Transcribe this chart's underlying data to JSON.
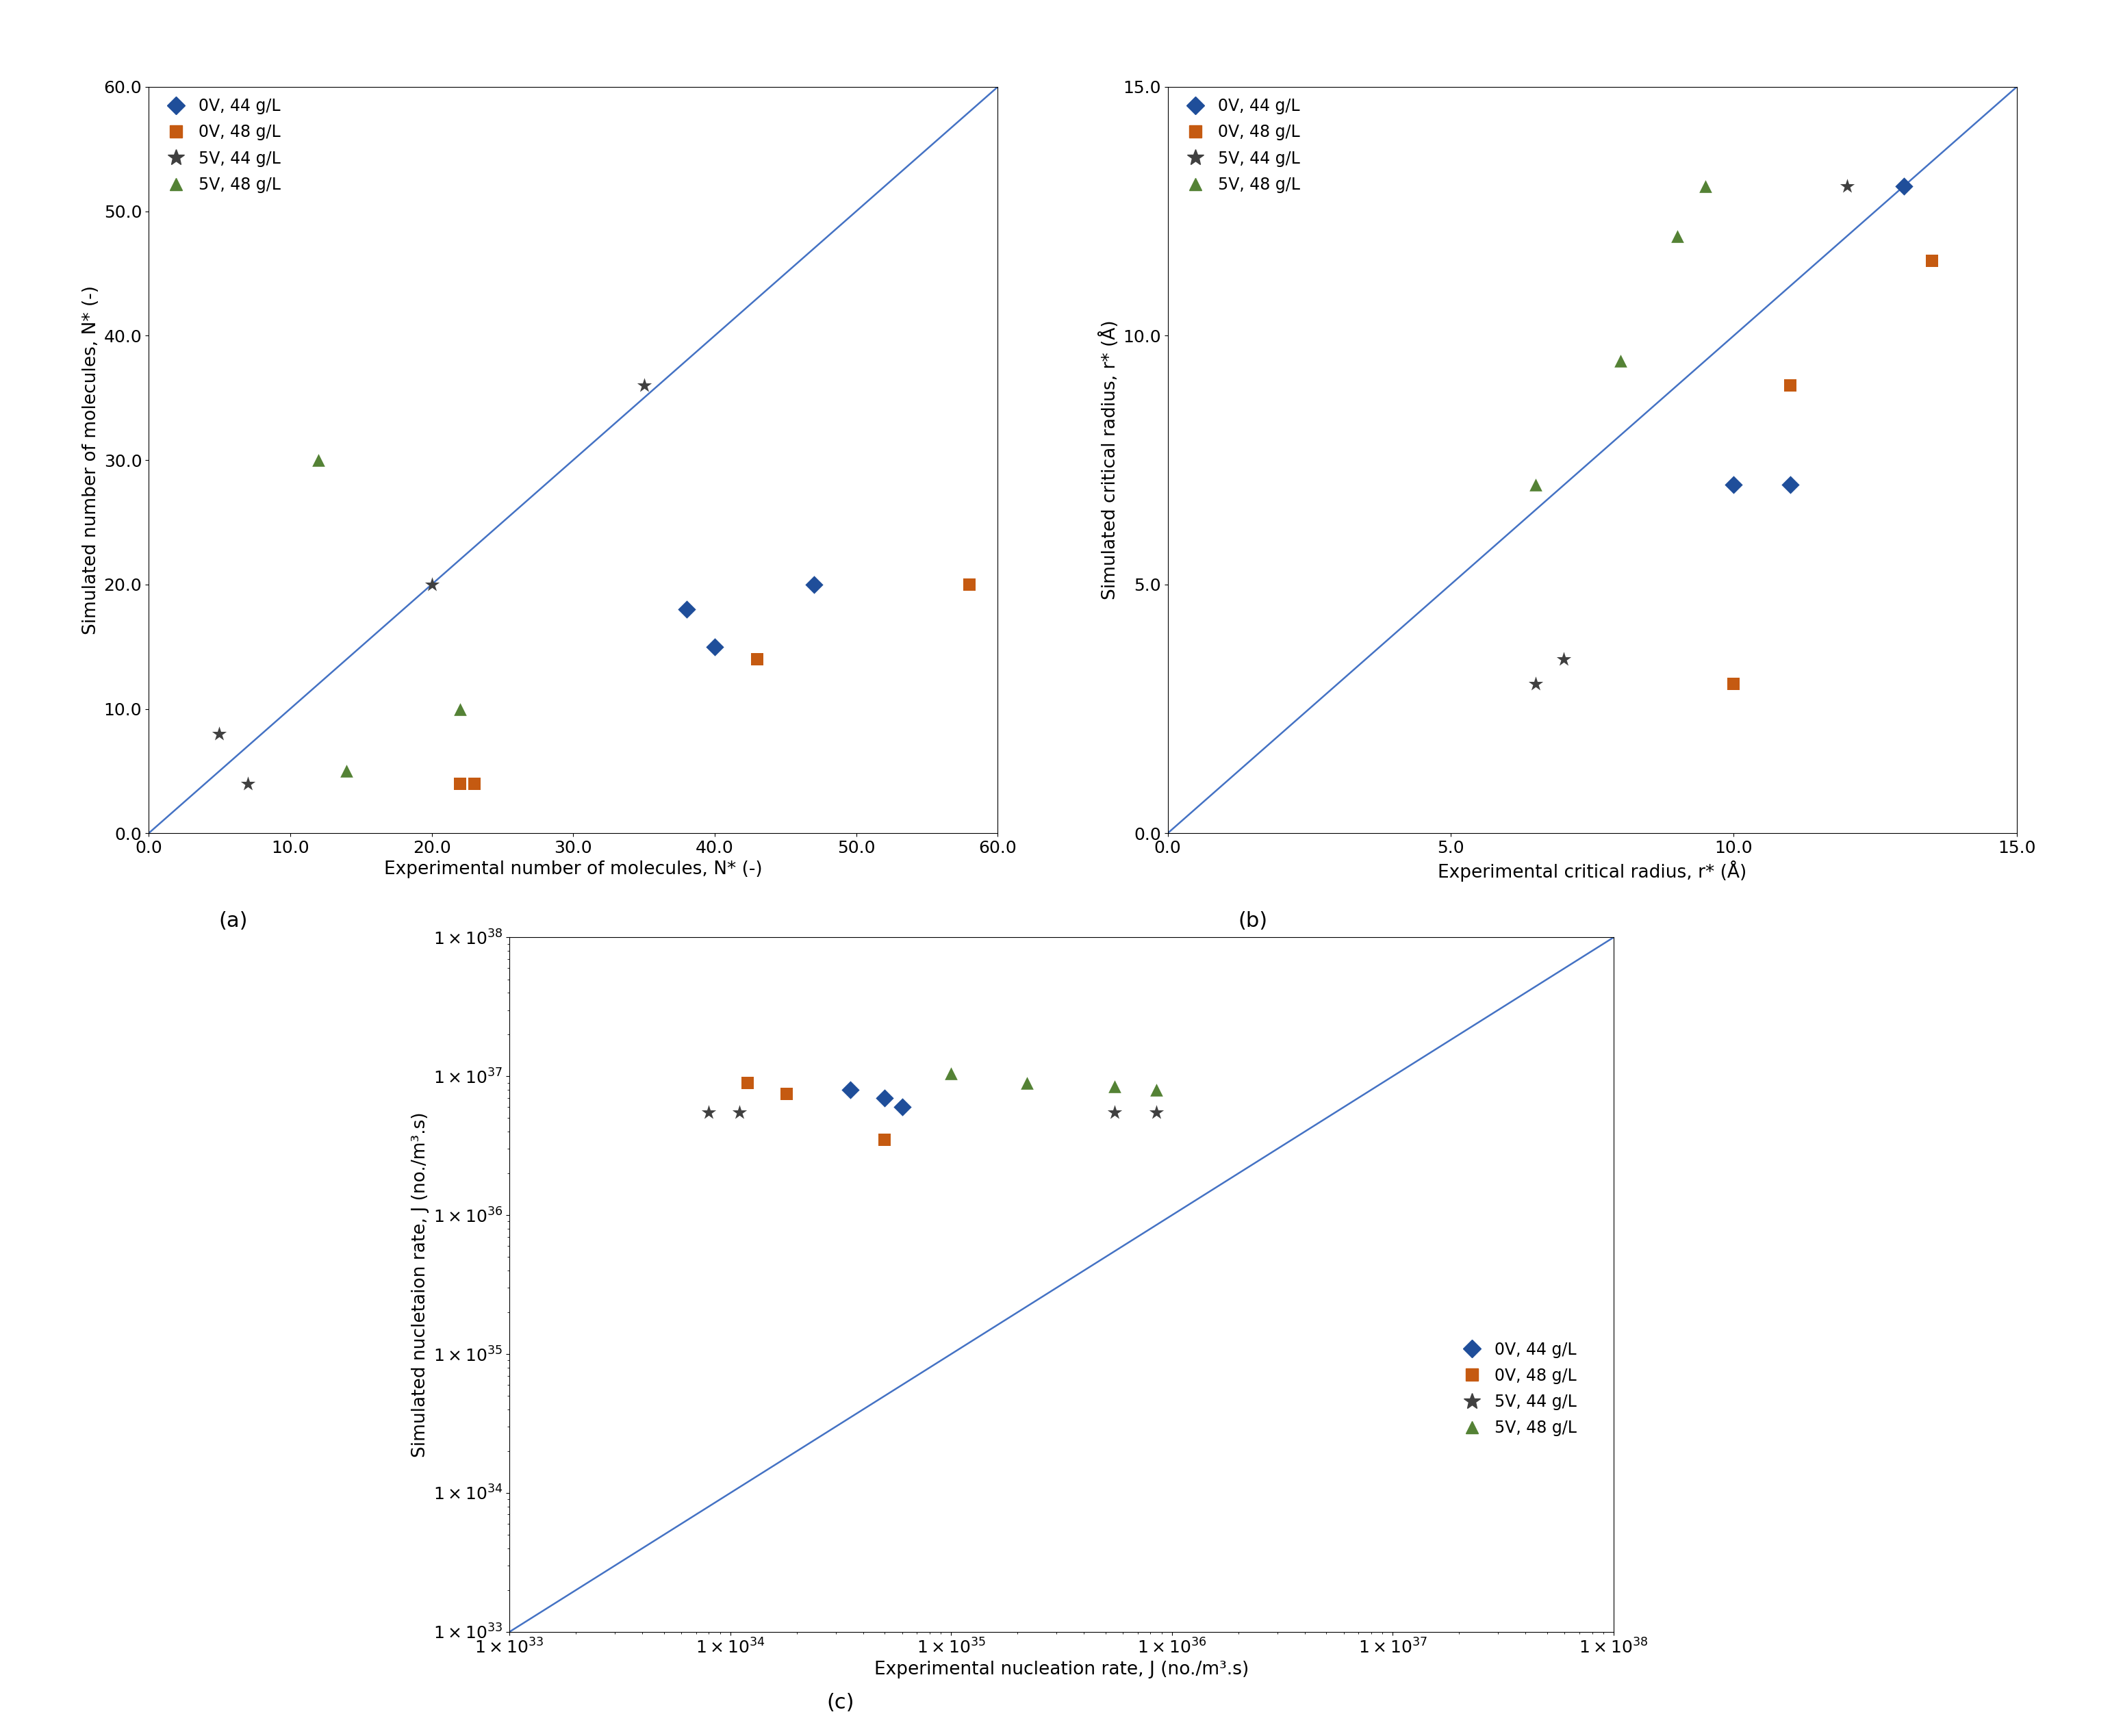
{
  "panel_a": {
    "xlabel": "Experimental number of molecules, N* (-)",
    "ylabel": "Simulated number of molecules, N* (-)",
    "xlim": [
      0.0,
      60.0
    ],
    "ylim": [
      0.0,
      60.0
    ],
    "xticks": [
      0.0,
      10.0,
      20.0,
      30.0,
      40.0,
      50.0,
      60.0
    ],
    "yticks": [
      0.0,
      10.0,
      20.0,
      30.0,
      40.0,
      50.0,
      60.0
    ],
    "series": {
      "0V_44": {
        "x": [
          38,
          40,
          47
        ],
        "y": [
          18,
          15,
          20
        ],
        "color": "#1f4e9a",
        "marker": "D"
      },
      "0V_48": {
        "x": [
          22,
          23,
          43,
          58
        ],
        "y": [
          4,
          4,
          14,
          20
        ],
        "color": "#c55a11",
        "marker": "s"
      },
      "5V_44": {
        "x": [
          5,
          7,
          20,
          35
        ],
        "y": [
          8,
          4,
          20,
          36
        ],
        "color": "#404040",
        "marker": "*"
      },
      "5V_48": {
        "x": [
          12,
          14,
          22
        ],
        "y": [
          30,
          5,
          10
        ],
        "color": "#548235",
        "marker": "^"
      }
    }
  },
  "panel_b": {
    "xlabel": "Experimental critical radius, r* (Å)",
    "ylabel": "Simulated critical radius, r* (Å)",
    "xlim": [
      0.0,
      15.0
    ],
    "ylim": [
      0.0,
      15.0
    ],
    "xticks": [
      0.0,
      5.0,
      10.0,
      15.0
    ],
    "yticks": [
      0.0,
      5.0,
      10.0,
      15.0
    ],
    "series": {
      "0V_44": {
        "x": [
          10.0,
          11.0,
          13.0
        ],
        "y": [
          7.0,
          7.0,
          13.0
        ],
        "color": "#1f4e9a",
        "marker": "D"
      },
      "0V_48": {
        "x": [
          10.0,
          11.0,
          13.5
        ],
        "y": [
          3.0,
          9.0,
          11.5
        ],
        "color": "#c55a11",
        "marker": "s"
      },
      "5V_44": {
        "x": [
          6.5,
          7.0,
          12.0
        ],
        "y": [
          3.0,
          3.5,
          13.0
        ],
        "color": "#404040",
        "marker": "*"
      },
      "5V_48": {
        "x": [
          6.5,
          8.0,
          9.0,
          9.5
        ],
        "y": [
          7.0,
          9.5,
          12.0,
          13.0
        ],
        "color": "#548235",
        "marker": "^"
      }
    }
  },
  "panel_c": {
    "xlabel": "Experimental nucleation rate, J (no./m³.s)",
    "ylabel": "Simulated nucletaion rate, J (no./m³.s)",
    "series": {
      "0V_44": {
        "x": [
          3.5e+34,
          5e+34,
          6e+34
        ],
        "y": [
          8e+36,
          7e+36,
          6e+36
        ],
        "color": "#1f4e9a",
        "marker": "D"
      },
      "0V_48": {
        "x": [
          1.2e+34,
          1.8e+34,
          5e+34
        ],
        "y": [
          9e+36,
          7.5e+36,
          3.5e+36
        ],
        "color": "#c55a11",
        "marker": "s"
      },
      "5V_44": {
        "x": [
          8e+33,
          1.1e+34,
          5.5e+35,
          8.5e+35
        ],
        "y": [
          5.5e+36,
          5.5e+36,
          5.5e+36,
          5.5e+36
        ],
        "color": "#404040",
        "marker": "*"
      },
      "5V_48": {
        "x": [
          1e+35,
          2.2e+35,
          5.5e+35,
          8.5e+35
        ],
        "y": [
          1.05e+37,
          9e+36,
          8.5e+36,
          8e+36
        ],
        "color": "#548235",
        "marker": "^"
      }
    }
  },
  "legend_labels": [
    "0V, 44 g/L",
    "0V, 48 g/L",
    "5V, 44 g/L",
    "5V, 48 g/L"
  ],
  "colors": [
    "#1f4e9a",
    "#c55a11",
    "#404040",
    "#548235"
  ],
  "markers": [
    "D",
    "s",
    "*",
    "^"
  ],
  "diag_color": "#4472c4",
  "label_a": "(a)",
  "label_b": "(b)",
  "label_c": "(c)"
}
